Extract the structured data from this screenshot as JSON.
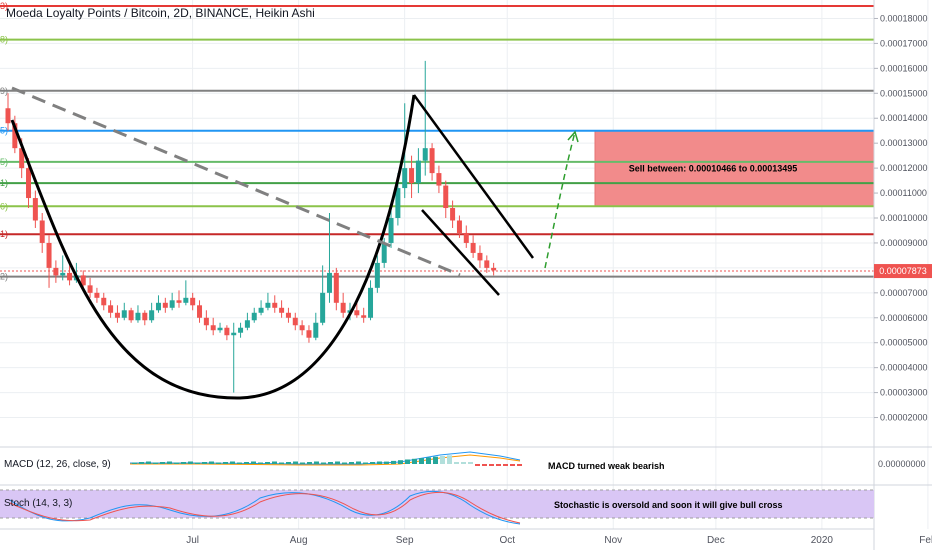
{
  "title": "Moeda Loyalty Points / Bitcoin, 2D, BINANCE, Heikin Ashi",
  "colors": {
    "up": "#26a69a",
    "down": "#ef5350",
    "grid": "#eceff2",
    "axis_text": "#50535e",
    "price_badge": "#ef5350",
    "sell_zone": "#f28b8b",
    "stoch_band": "#d9c6f5",
    "drawing": "#000000",
    "dashed_trend": "#808080",
    "projection": "#2e9e2e"
  },
  "price_axis": {
    "min": 1.5e-05,
    "max": 0.000185,
    "ticks": [
      "0.00018000",
      "0.00017000",
      "0.00016000",
      "0.00015000",
      "0.00014000",
      "0.00013000",
      "0.00012000",
      "0.00011000",
      "0.00010000",
      "0.00009000",
      "0.00008000",
      "0.00007000",
      "0.00006000",
      "0.00005000",
      "0.00004000",
      "0.00003000",
      "0.00002000"
    ],
    "last_price": "0.00007873",
    "last_price_value": 7.873e-05
  },
  "time_axis": {
    "labels": [
      {
        "label": "Jul",
        "day": 30
      },
      {
        "label": "Aug",
        "day": 61
      },
      {
        "label": "Sep",
        "day": 92
      },
      {
        "label": "Oct",
        "day": 122
      },
      {
        "label": "Nov",
        "day": 153
      },
      {
        "label": "Dec",
        "day": 183
      },
      {
        "label": "2020",
        "day": 214
      },
      {
        "label": "Feb",
        "day": 245
      }
    ]
  },
  "fib_levels": [
    {
      "price": 0.000185,
      "color": "#e53935",
      "tag": "3)"
    },
    {
      "price": 0.0001715,
      "color": "#8bc34a",
      "tag": "8)"
    },
    {
      "price": 0.000151,
      "color": "#808080",
      "tag": "9)"
    },
    {
      "price": 0.000135,
      "color": "#2196f3",
      "tag": "5)"
    },
    {
      "price": 0.0001225,
      "color": "#66bb6a",
      "tag": "5)"
    },
    {
      "price": 0.000114,
      "color": "#43a047",
      "tag": "1)"
    },
    {
      "price": 0.0001047,
      "color": "#8bc34a",
      "tag": "6)"
    },
    {
      "price": 9.35e-05,
      "color": "#c62828",
      "tag": "1)"
    },
    {
      "price": 7.65e-05,
      "color": "#808080",
      "tag": "2)"
    }
  ],
  "annotations": {
    "sell_zone_text": "Sell between: 0.00010466 to 0.00013495",
    "macd_text": "MACD turned weak bearish",
    "stoch_text": "Stochastic is oversold and soon it will give bull cross"
  },
  "indicators": {
    "macd_label": "MACD (12, 26, close, 9)",
    "stoch_label": "Stoch (14, 3, 3)",
    "macd_tick": "0.00000000"
  },
  "chart_data": {
    "type": "candlestick",
    "series_type": "Heikin Ashi",
    "interval": "2D",
    "exchange": "BINANCE",
    "symbol": "Moeda Loyalty Points / Bitcoin",
    "x_unit": "days from 1 Jun 2019",
    "sell_zone": {
      "low": 0.00010466,
      "high": 0.00013495
    },
    "candles": [
      {
        "d": 0,
        "o": 0.000144,
        "h": 0.00015,
        "l": 0.000135,
        "c": 0.000138
      },
      {
        "d": 2,
        "o": 0.000138,
        "h": 0.000141,
        "l": 0.000126,
        "c": 0.000128
      },
      {
        "d": 4,
        "o": 0.000128,
        "h": 0.000132,
        "l": 0.000116,
        "c": 0.00012
      },
      {
        "d": 6,
        "o": 0.00012,
        "h": 0.000124,
        "l": 0.000104,
        "c": 0.000108
      },
      {
        "d": 8,
        "o": 0.000108,
        "h": 0.000111,
        "l": 9.6e-05,
        "c": 9.9e-05
      },
      {
        "d": 10,
        "o": 9.9e-05,
        "h": 0.000102,
        "l": 8.6e-05,
        "c": 9e-05
      },
      {
        "d": 12,
        "o": 9e-05,
        "h": 9.3e-05,
        "l": 7.2e-05,
        "c": 8e-05
      },
      {
        "d": 14,
        "o": 8e-05,
        "h": 8.3e-05,
        "l": 7.4e-05,
        "c": 7.7e-05
      },
      {
        "d": 16,
        "o": 7.7e-05,
        "h": 8.5e-05,
        "l": 7.5e-05,
        "c": 7.8e-05
      },
      {
        "d": 18,
        "o": 7.8e-05,
        "h": 8.1e-05,
        "l": 7.3e-05,
        "c": 7.5e-05
      },
      {
        "d": 20,
        "o": 7.5e-05,
        "h": 8.2e-05,
        "l": 7.4e-05,
        "c": 7.7e-05
      },
      {
        "d": 22,
        "o": 7.7e-05,
        "h": 7.9e-05,
        "l": 7.1e-05,
        "c": 7.3e-05
      },
      {
        "d": 24,
        "o": 7.3e-05,
        "h": 7.6e-05,
        "l": 6.8e-05,
        "c": 7e-05
      },
      {
        "d": 26,
        "o": 7e-05,
        "h": 7.2e-05,
        "l": 6.6e-05,
        "c": 6.8e-05
      },
      {
        "d": 28,
        "o": 6.8e-05,
        "h": 7e-05,
        "l": 6.3e-05,
        "c": 6.5e-05
      },
      {
        "d": 30,
        "o": 6.5e-05,
        "h": 6.7e-05,
        "l": 6e-05,
        "c": 6.2e-05
      },
      {
        "d": 32,
        "o": 6.2e-05,
        "h": 6.5e-05,
        "l": 5.8e-05,
        "c": 6e-05
      },
      {
        "d": 34,
        "o": 6e-05,
        "h": 6.6e-05,
        "l": 5.9e-05,
        "c": 6.3e-05
      },
      {
        "d": 36,
        "o": 6.3e-05,
        "h": 6.4e-05,
        "l": 5.8e-05,
        "c": 5.9e-05
      },
      {
        "d": 38,
        "o": 5.9e-05,
        "h": 6.5e-05,
        "l": 5.8e-05,
        "c": 6.2e-05
      },
      {
        "d": 40,
        "o": 6.2e-05,
        "h": 6.3e-05,
        "l": 5.7e-05,
        "c": 5.9e-05
      },
      {
        "d": 42,
        "o": 5.9e-05,
        "h": 6.6e-05,
        "l": 5.8e-05,
        "c": 6.3e-05
      },
      {
        "d": 44,
        "o": 6.3e-05,
        "h": 6.9e-05,
        "l": 6.2e-05,
        "c": 6.6e-05
      },
      {
        "d": 46,
        "o": 6.6e-05,
        "h": 6.8e-05,
        "l": 6.2e-05,
        "c": 6.4e-05
      },
      {
        "d": 48,
        "o": 6.4e-05,
        "h": 7e-05,
        "l": 6.3e-05,
        "c": 6.7e-05
      },
      {
        "d": 50,
        "o": 6.7e-05,
        "h": 7.1e-05,
        "l": 6.4e-05,
        "c": 6.6e-05
      },
      {
        "d": 52,
        "o": 6.6e-05,
        "h": 7.5e-05,
        "l": 6.5e-05,
        "c": 6.8e-05
      },
      {
        "d": 54,
        "o": 6.8e-05,
        "h": 7e-05,
        "l": 6.3e-05,
        "c": 6.5e-05
      },
      {
        "d": 56,
        "o": 6.5e-05,
        "h": 6.7e-05,
        "l": 5.8e-05,
        "c": 6e-05
      },
      {
        "d": 58,
        "o": 6e-05,
        "h": 6.3e-05,
        "l": 5.5e-05,
        "c": 5.7e-05
      },
      {
        "d": 60,
        "o": 5.7e-05,
        "h": 6e-05,
        "l": 5.3e-05,
        "c": 5.5e-05
      },
      {
        "d": 62,
        "o": 5.5e-05,
        "h": 5.8e-05,
        "l": 5.4e-05,
        "c": 5.6e-05
      },
      {
        "d": 64,
        "o": 5.6e-05,
        "h": 5.7e-05,
        "l": 5.1e-05,
        "c": 5.3e-05
      },
      {
        "d": 66,
        "o": 5.3e-05,
        "h": 5.8e-05,
        "l": 3e-05,
        "c": 5.4e-05
      },
      {
        "d": 68,
        "o": 5.4e-05,
        "h": 5.8e-05,
        "l": 5.2e-05,
        "c": 5.6e-05
      },
      {
        "d": 70,
        "o": 5.6e-05,
        "h": 6.2e-05,
        "l": 5.5e-05,
        "c": 5.9e-05
      },
      {
        "d": 72,
        "o": 5.9e-05,
        "h": 6.4e-05,
        "l": 5.8e-05,
        "c": 6.2e-05
      },
      {
        "d": 74,
        "o": 6.2e-05,
        "h": 6.7e-05,
        "l": 6.1e-05,
        "c": 6.4e-05
      },
      {
        "d": 76,
        "o": 6.4e-05,
        "h": 7e-05,
        "l": 6.3e-05,
        "c": 6.6e-05
      },
      {
        "d": 78,
        "o": 6.6e-05,
        "h": 6.9e-05,
        "l": 6.2e-05,
        "c": 6.4e-05
      },
      {
        "d": 80,
        "o": 6.4e-05,
        "h": 6.7e-05,
        "l": 6e-05,
        "c": 6.2e-05
      },
      {
        "d": 82,
        "o": 6.2e-05,
        "h": 6.4e-05,
        "l": 5.8e-05,
        "c": 6e-05
      },
      {
        "d": 84,
        "o": 6e-05,
        "h": 6.2e-05,
        "l": 5.5e-05,
        "c": 5.7e-05
      },
      {
        "d": 86,
        "o": 5.7e-05,
        "h": 5.9e-05,
        "l": 5.3e-05,
        "c": 5.5e-05
      },
      {
        "d": 88,
        "o": 5.5e-05,
        "h": 5.7e-05,
        "l": 5e-05,
        "c": 5.2e-05
      },
      {
        "d": 90,
        "o": 5.2e-05,
        "h": 6.2e-05,
        "l": 5.1e-05,
        "c": 5.8e-05
      },
      {
        "d": 92,
        "o": 5.8e-05,
        "h": 8.1e-05,
        "l": 5.7e-05,
        "c": 7e-05
      },
      {
        "d": 94,
        "o": 7e-05,
        "h": 0.000102,
        "l": 6.6e-05,
        "c": 7.8e-05
      },
      {
        "d": 96,
        "o": 7.8e-05,
        "h": 8e-05,
        "l": 6.3e-05,
        "c": 6.6e-05
      },
      {
        "d": 98,
        "o": 6.6e-05,
        "h": 7e-05,
        "l": 6e-05,
        "c": 6.2e-05
      },
      {
        "d": 100,
        "o": 6.2e-05,
        "h": 6.6e-05,
        "l": 5.9e-05,
        "c": 6.3e-05
      },
      {
        "d": 102,
        "o": 6.3e-05,
        "h": 6.7e-05,
        "l": 6e-05,
        "c": 6.1e-05
      },
      {
        "d": 104,
        "o": 6.1e-05,
        "h": 6.4e-05,
        "l": 5.8e-05,
        "c": 6e-05
      },
      {
        "d": 106,
        "o": 6e-05,
        "h": 7.5e-05,
        "l": 5.9e-05,
        "c": 7.2e-05
      },
      {
        "d": 108,
        "o": 7.2e-05,
        "h": 8.5e-05,
        "l": 7e-05,
        "c": 8.2e-05
      },
      {
        "d": 110,
        "o": 8.2e-05,
        "h": 9.2e-05,
        "l": 8e-05,
        "c": 9e-05
      },
      {
        "d": 112,
        "o": 9e-05,
        "h": 0.000105,
        "l": 8.8e-05,
        "c": 0.0001
      },
      {
        "d": 114,
        "o": 0.0001,
        "h": 0.000118,
        "l": 9.7e-05,
        "c": 0.000112
      },
      {
        "d": 116,
        "o": 0.000112,
        "h": 0.000146,
        "l": 0.000108,
        "c": 0.00012
      },
      {
        "d": 118,
        "o": 0.00012,
        "h": 0.000125,
        "l": 0.000108,
        "c": 0.000114
      },
      {
        "d": 120,
        "o": 0.000114,
        "h": 0.000128,
        "l": 0.00011,
        "c": 0.000123
      },
      {
        "d": 122,
        "o": 0.000123,
        "h": 0.000163,
        "l": 0.000117,
        "c": 0.000128
      },
      {
        "d": 124,
        "o": 0.000128,
        "h": 0.00013,
        "l": 0.000115,
        "c": 0.000118
      },
      {
        "d": 126,
        "o": 0.000118,
        "h": 0.000121,
        "l": 0.00011,
        "c": 0.000113
      },
      {
        "d": 128,
        "o": 0.000113,
        "h": 0.000115,
        "l": 0.0001,
        "c": 0.000104
      },
      {
        "d": 130,
        "o": 0.000104,
        "h": 0.000107,
        "l": 9.6e-05,
        "c": 9.9e-05
      },
      {
        "d": 132,
        "o": 9.9e-05,
        "h": 0.000101,
        "l": 9.2e-05,
        "c": 9.4e-05
      },
      {
        "d": 134,
        "o": 9.4e-05,
        "h": 9.7e-05,
        "l": 8.8e-05,
        "c": 9e-05
      },
      {
        "d": 136,
        "o": 9e-05,
        "h": 9.3e-05,
        "l": 8.4e-05,
        "c": 8.6e-05
      },
      {
        "d": 138,
        "o": 8.6e-05,
        "h": 8.9e-05,
        "l": 8e-05,
        "c": 8.3e-05
      },
      {
        "d": 140,
        "o": 8.3e-05,
        "h": 8.5e-05,
        "l": 7.8e-05,
        "c": 8e-05
      },
      {
        "d": 142,
        "o": 8e-05,
        "h": 8.2e-05,
        "l": 7.7e-05,
        "c": 7.9e-05
      }
    ]
  }
}
